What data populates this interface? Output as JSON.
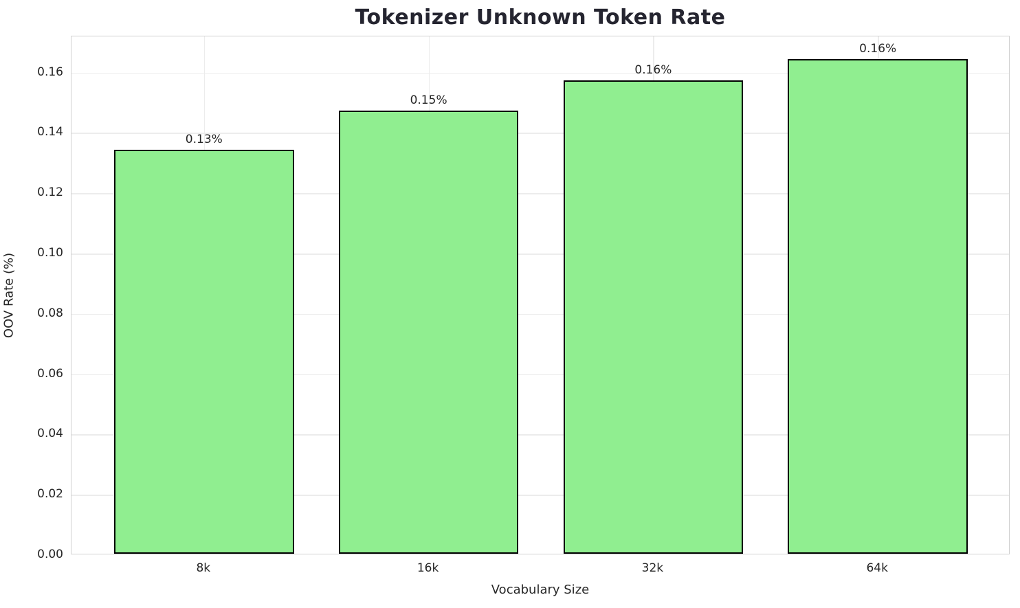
{
  "chart_data": {
    "type": "bar",
    "title": "Tokenizer Unknown Token Rate",
    "xlabel": "Vocabulary Size",
    "ylabel": "OOV Rate (%)",
    "categories": [
      "8k",
      "16k",
      "32k",
      "64k"
    ],
    "values": [
      0.134,
      0.147,
      0.157,
      0.164
    ],
    "bar_labels": [
      "0.13%",
      "0.15%",
      "0.16%",
      "0.16%"
    ],
    "ylim": [
      0,
      0.172
    ],
    "xlim": [
      -0.59,
      3.59
    ],
    "bar_width": 0.8,
    "yticks": [
      0,
      0.02,
      0.04,
      0.06,
      0.08,
      0.1,
      0.12,
      0.14,
      0.16
    ],
    "ytick_labels": [
      "0.00",
      "0.02",
      "0.04",
      "0.06",
      "0.08",
      "0.10",
      "0.12",
      "0.14",
      "0.16"
    ],
    "grid": true,
    "legend_position": "none",
    "colors": {
      "bar_fill": "#90EE90",
      "bar_edge": "#000000",
      "grid": "#ececec",
      "spine": "#d0d0d0",
      "text": "#262626"
    }
  }
}
